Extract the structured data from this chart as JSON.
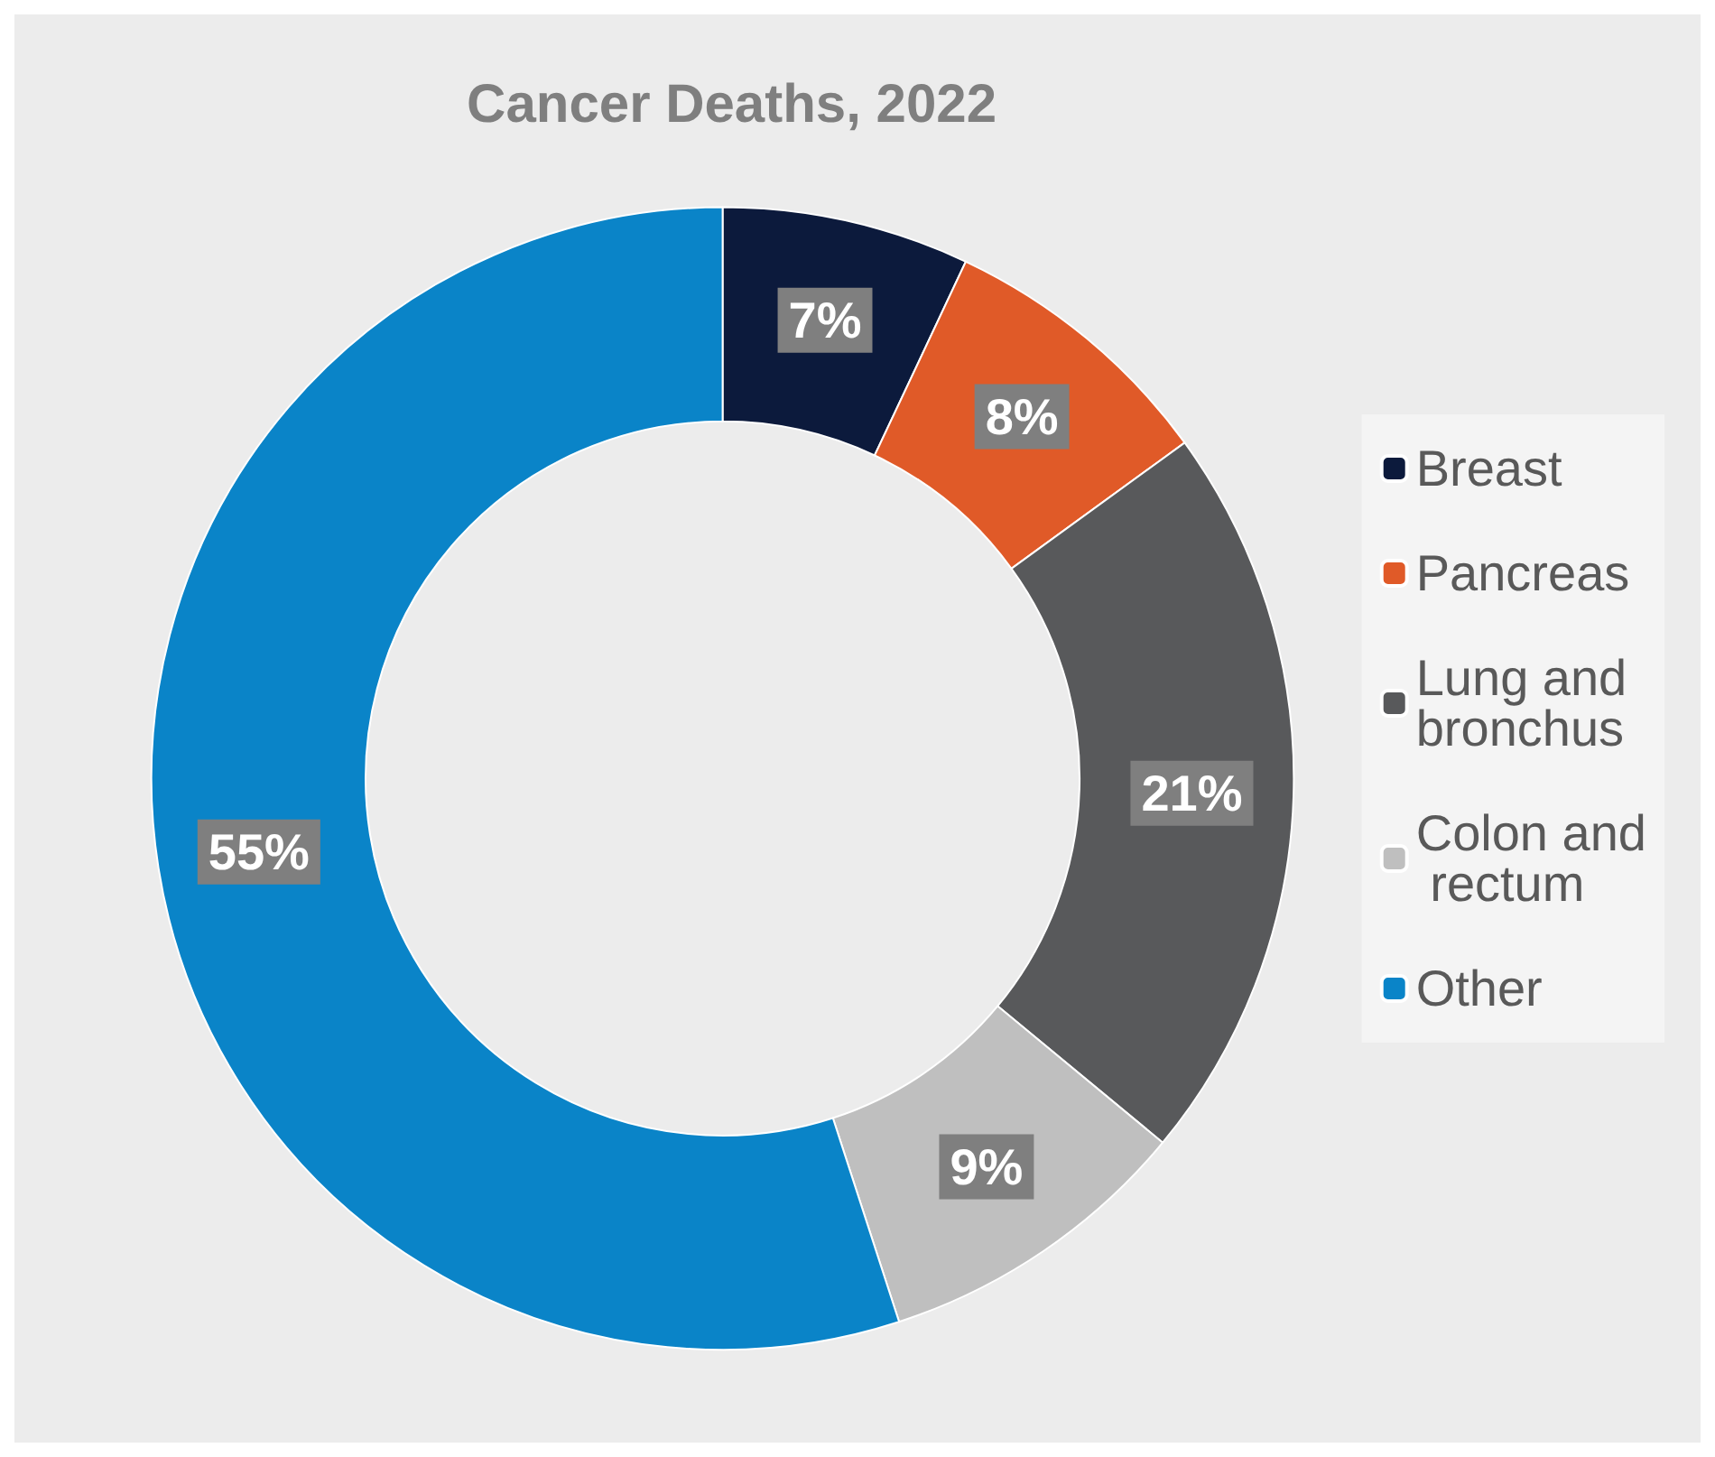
{
  "chart_data": {
    "type": "donut",
    "title": "Cancer Deaths, 2022",
    "categories": [
      "Breast",
      "Pancreas",
      "Lung and bronchus",
      "Colon and rectum",
      "Other"
    ],
    "values": [
      7,
      8,
      21,
      9,
      55
    ],
    "colors": [
      "#0c1a3c",
      "#e05a28",
      "#58595b",
      "#bfbfbf",
      "#0a84c8"
    ],
    "value_labels": [
      "7%",
      "8%",
      "21%",
      "9%",
      "55%"
    ],
    "legend": "right"
  }
}
